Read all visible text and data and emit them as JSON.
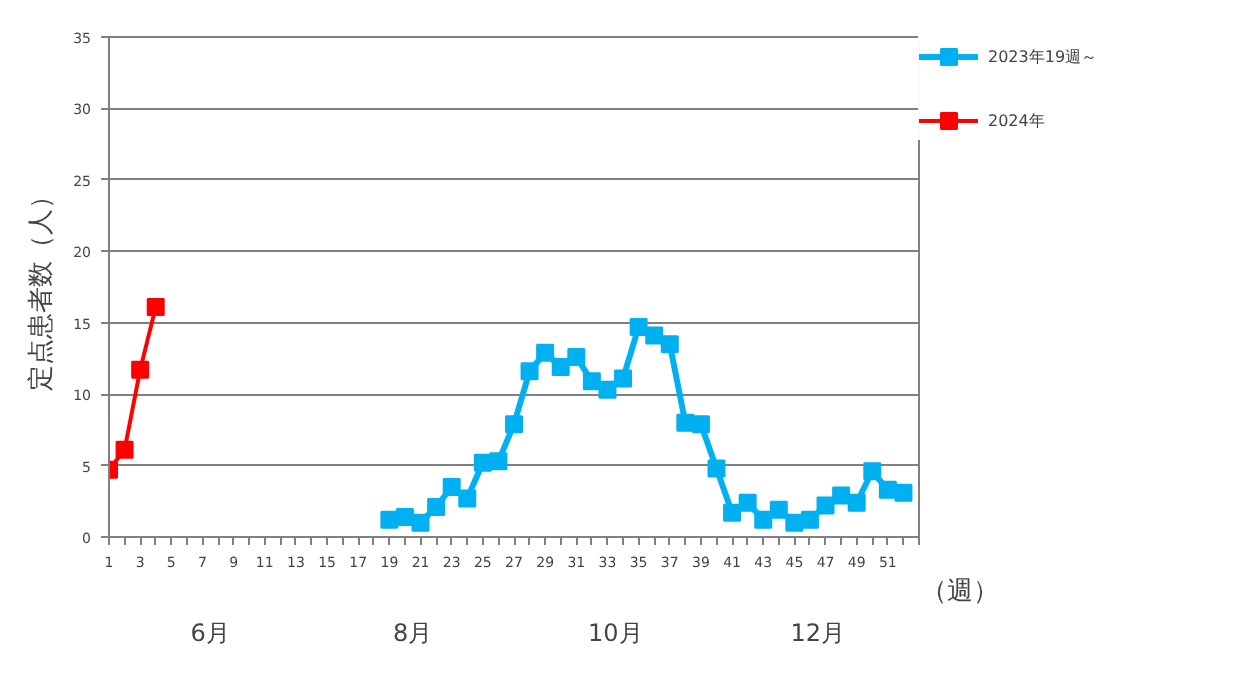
{
  "chart_data": {
    "type": "line",
    "ylabel": "定点患者数（人）",
    "xlabel": "（週）",
    "xlim": [
      1,
      53
    ],
    "xticks": [
      1,
      3,
      5,
      7,
      9,
      11,
      13,
      15,
      17,
      19,
      21,
      23,
      25,
      27,
      29,
      31,
      33,
      35,
      37,
      39,
      41,
      43,
      45,
      47,
      49,
      51
    ],
    "ylim": [
      0,
      35
    ],
    "yticks": [
      0,
      5,
      10,
      15,
      20,
      25,
      30,
      35
    ],
    "grid": "y",
    "legend": "right",
    "marker": "square",
    "line_style": "solid",
    "annotations": [
      "6月",
      "8月",
      "10月",
      "12月"
    ],
    "series": [
      {
        "name": "2023年19週～",
        "color": "#00b0f0",
        "x": [
          19,
          20,
          21,
          22,
          23,
          24,
          25,
          26,
          27,
          28,
          29,
          30,
          31,
          32,
          33,
          34,
          35,
          36,
          37,
          38,
          39,
          40,
          41,
          42,
          43,
          44,
          45,
          46,
          47,
          48,
          49,
          50,
          51,
          52
        ],
        "values": [
          1.2,
          1.4,
          1.0,
          2.1,
          3.5,
          2.7,
          5.2,
          5.3,
          7.9,
          11.6,
          12.9,
          11.9,
          12.6,
          10.9,
          10.3,
          11.1,
          14.7,
          14.1,
          13.5,
          8.0,
          7.9,
          4.8,
          1.7,
          2.4,
          1.2,
          1.9,
          1.0,
          1.2,
          2.2,
          2.9,
          2.4,
          4.6,
          3.3,
          3.1
        ]
      },
      {
        "name": "2024年",
        "color": "#ff0000",
        "x": [
          1,
          2,
          3,
          4
        ],
        "values": [
          4.7,
          6.1,
          11.7,
          16.1
        ]
      }
    ]
  }
}
